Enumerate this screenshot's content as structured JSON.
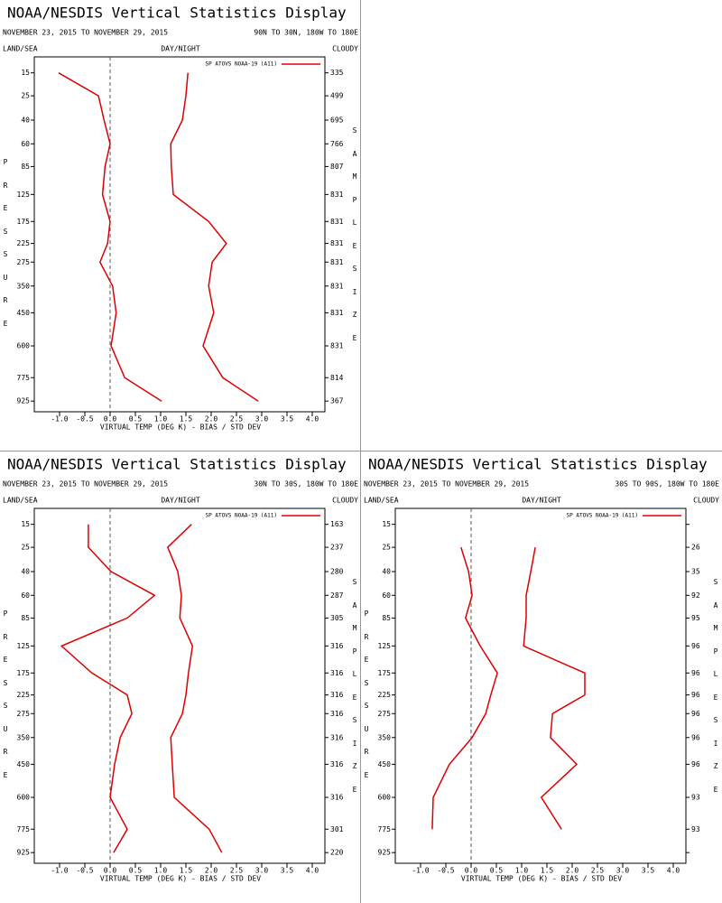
{
  "chart_data": [
    {
      "type": "line",
      "title": "NOAA/NESDIS Vertical Statistics Display",
      "subtitle": "NOVEMBER 23, 2015 TO NOVEMBER 29, 2015",
      "region": "90N TO 30N, 180W TO 180E",
      "land_label": "LAND/SEA",
      "daynight_label": "DAY/NIGHT",
      "cloud_label": "CLOUDY",
      "ylabel": "PRESSURE",
      "y2label": "SAMPLE SIZE",
      "xlabel": "VIRTUAL TEMP (DEG K) - BIAS / STD DEV",
      "xlim": [
        -1.5,
        4.25
      ],
      "xticks": [
        {
          "value": -1,
          "label": "-1.0"
        },
        {
          "value": -0.5,
          "label": "-0.5"
        },
        {
          "value": 0,
          "label": "0.0"
        },
        {
          "value": 0.5,
          "label": "0.5"
        },
        {
          "value": 1,
          "label": "1.0"
        },
        {
          "value": 1.5,
          "label": "1.5"
        },
        {
          "value": 2,
          "label": "2.0"
        },
        {
          "value": 2.5,
          "label": "2.5"
        },
        {
          "value": 3,
          "label": "3.0"
        },
        {
          "value": 3.5,
          "label": "3.5"
        },
        {
          "value": 4,
          "label": "4.0"
        }
      ],
      "ylim": [
        10,
        1000
      ],
      "yscale": "power",
      "yexponent": 0.286,
      "zero_line": true,
      "y": [
        15,
        25,
        40,
        60,
        85,
        125,
        175,
        225,
        275,
        350,
        450,
        600,
        775,
        925
      ],
      "sample_size": [
        335,
        499,
        695,
        766,
        807,
        831,
        831,
        831,
        831,
        831,
        831,
        831,
        814,
        367
      ],
      "series": [
        {
          "name": "SP ATOVS NOAA-19 (A11)",
          "color": "#dd0000",
          "bias": [
            -1.02,
            -0.23,
            -0.12,
            0.0,
            -0.1,
            -0.15,
            0.0,
            -0.05,
            -0.2,
            0.05,
            0.12,
            0.02,
            0.29,
            1.02
          ],
          "std_dev": [
            1.54,
            1.5,
            1.43,
            1.2,
            1.21,
            1.25,
            1.95,
            2.3,
            2.02,
            1.95,
            2.05,
            1.84,
            2.23,
            2.93
          ]
        }
      ]
    },
    {
      "type": "line",
      "title": "NOAA/NESDIS Vertical Statistics Display",
      "subtitle": "NOVEMBER 23, 2015 TO NOVEMBER 29, 2015",
      "region": "30N TO 30S, 180W TO 180E",
      "land_label": "LAND/SEA",
      "daynight_label": "DAY/NIGHT",
      "cloud_label": "CLOUDY",
      "ylabel": "PRESSURE",
      "y2label": "SAMPLE SIZE",
      "xlabel": "VIRTUAL TEMP (DEG K) - BIAS / STD DEV",
      "xlim": [
        -1.5,
        4.25
      ],
      "xticks": [
        {
          "value": -1,
          "label": "-1.0"
        },
        {
          "value": -0.5,
          "label": "-0.5"
        },
        {
          "value": 0,
          "label": "0.0"
        },
        {
          "value": 0.5,
          "label": "0.5"
        },
        {
          "value": 1,
          "label": "1.0"
        },
        {
          "value": 1.5,
          "label": "1.5"
        },
        {
          "value": 2,
          "label": "2.0"
        },
        {
          "value": 2.5,
          "label": "2.5"
        },
        {
          "value": 3,
          "label": "3.0"
        },
        {
          "value": 3.5,
          "label": "3.5"
        },
        {
          "value": 4,
          "label": "4.0"
        }
      ],
      "ylim": [
        10,
        1000
      ],
      "yscale": "power",
      "yexponent": 0.286,
      "zero_line": true,
      "y": [
        15,
        25,
        40,
        60,
        85,
        125,
        175,
        225,
        275,
        350,
        450,
        600,
        775,
        925
      ],
      "sample_size": [
        163,
        237,
        280,
        287,
        305,
        316,
        316,
        316,
        316,
        316,
        316,
        316,
        301,
        220
      ],
      "series": [
        {
          "name": "SP ATOVS NOAA-19 (A11)",
          "color": "#dd0000",
          "bias": [
            -0.43,
            -0.43,
            0.02,
            0.88,
            0.34,
            -0.96,
            -0.36,
            0.34,
            0.43,
            0.2,
            0.09,
            0.0,
            0.34,
            0.07
          ],
          "std_dev": [
            1.61,
            1.14,
            1.34,
            1.41,
            1.38,
            1.63,
            1.55,
            1.5,
            1.43,
            1.2,
            1.23,
            1.27,
            1.96,
            2.21
          ]
        }
      ]
    },
    {
      "type": "line",
      "title": "NOAA/NESDIS Vertical Statistics Display",
      "subtitle": "NOVEMBER 23, 2015 TO NOVEMBER 29, 2015",
      "region": "30S TO 90S, 180W TO 180E",
      "land_label": "LAND/SEA",
      "daynight_label": "DAY/NIGHT",
      "cloud_label": "CLOUDY",
      "ylabel": "PRESSURE",
      "y2label": "SAMPLE SIZE",
      "xlabel": "VIRTUAL TEMP (DEG K) - BIAS / STD DEV",
      "xlim": [
        -1.5,
        4.25
      ],
      "xticks": [
        {
          "value": -1,
          "label": "-1.0"
        },
        {
          "value": -0.5,
          "label": "-0.5"
        },
        {
          "value": 0,
          "label": "0.0"
        },
        {
          "value": 0.5,
          "label": "0.5"
        },
        {
          "value": 1,
          "label": "1.0"
        },
        {
          "value": 1.5,
          "label": "1.5"
        },
        {
          "value": 2,
          "label": "2.0"
        },
        {
          "value": 2.5,
          "label": "2.5"
        },
        {
          "value": 3,
          "label": "3.0"
        },
        {
          "value": 3.5,
          "label": "3.5"
        },
        {
          "value": 4,
          "label": "4.0"
        }
      ],
      "ylim": [
        10,
        1000
      ],
      "yscale": "power",
      "yexponent": 0.286,
      "zero_line": true,
      "y": [
        15,
        25,
        40,
        60,
        85,
        125,
        175,
        225,
        275,
        350,
        450,
        600,
        775,
        925
      ],
      "sample_size": [
        null,
        26,
        35,
        92,
        95,
        96,
        96,
        96,
        96,
        96,
        96,
        93,
        93,
        null
      ],
      "series": [
        {
          "name": "SP ATOVS NOAA-19 (A11)",
          "color": "#dd0000",
          "bias": [
            null,
            -0.2,
            -0.05,
            0.02,
            -0.11,
            0.18,
            0.52,
            0.39,
            0.29,
            0.02,
            -0.43,
            -0.75,
            -0.77,
            null
          ],
          "std_dev": [
            null,
            1.27,
            1.18,
            1.09,
            1.09,
            1.04,
            2.25,
            2.25,
            1.61,
            1.57,
            2.09,
            1.39,
            1.79,
            null
          ]
        }
      ]
    }
  ]
}
